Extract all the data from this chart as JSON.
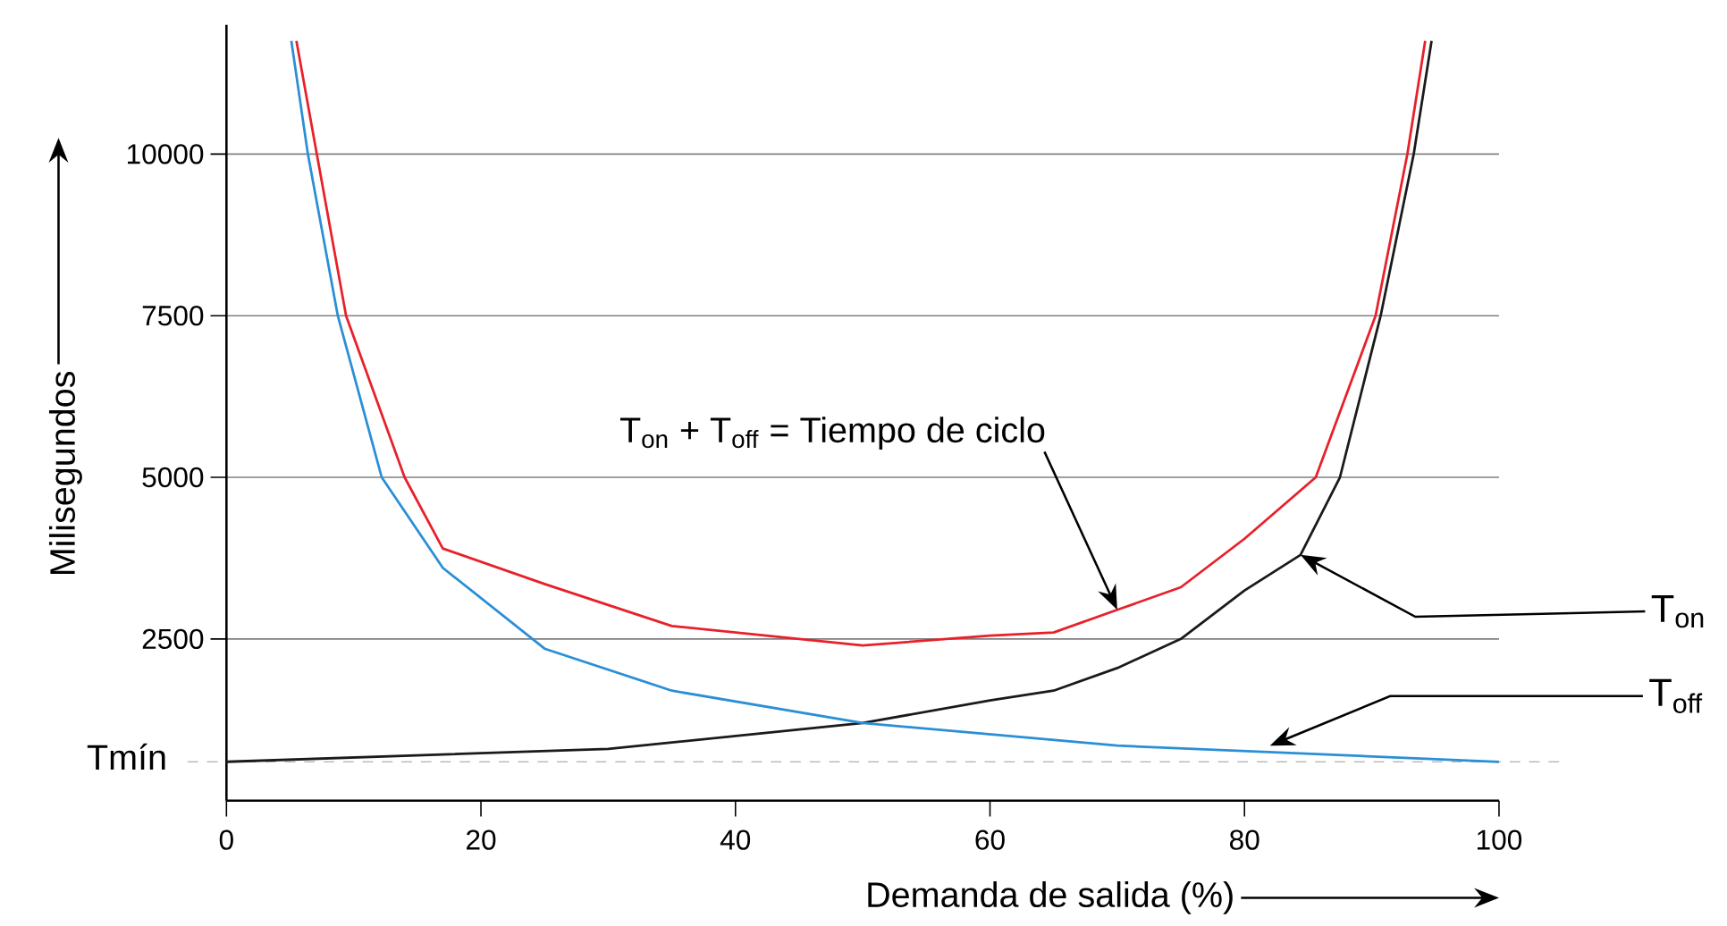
{
  "chart_data": {
    "type": "line",
    "xlabel": "Demanda de salida (%)",
    "ylabel": "Milisegundos",
    "xlim": [
      0,
      100
    ],
    "ylim": [
      0,
      12000
    ],
    "xticks": [
      0,
      20,
      40,
      60,
      80,
      100
    ],
    "yticks": [
      2500,
      5000,
      7500,
      10000
    ],
    "grid": "y",
    "line_style": "solid",
    "series": [
      {
        "color": "#1a1a1a",
        "x": [
          0,
          30,
          50,
          60,
          65,
          70,
          75,
          80,
          84.4,
          87.5,
          90.7,
          93.3,
          94.7
        ],
        "values": [
          600,
          800,
          1200,
          1550,
          1700,
          2050,
          2500,
          3250,
          3800,
          5000,
          7500,
          10000,
          11750
        ]
      },
      {
        "color": "#e8202a",
        "x": [
          5.5,
          7.1,
          9.4,
          14,
          17,
          25,
          35,
          50,
          60,
          65,
          70,
          75,
          80,
          85.6,
          90.3,
          92.8,
          94.2
        ],
        "values": [
          11750,
          10000,
          7500,
          5000,
          3900,
          3350,
          2700,
          2400,
          2550,
          2600,
          2950,
          3300,
          4050,
          5000,
          7500,
          10000,
          11750
        ]
      },
      {
        "color": "#2a8fd6",
        "x": [
          5.1,
          6.4,
          8.75,
          12.2,
          17,
          25,
          35,
          50,
          70,
          100
        ],
        "values": [
          11750,
          10000,
          7500,
          5000,
          3600,
          2350,
          1700,
          1200,
          850,
          600
        ]
      }
    ],
    "ref_lines": [
      {
        "axis": "y",
        "value": 600,
        "label": "Tmín",
        "color": "#9a9a9a",
        "line_style": "dashed"
      }
    ],
    "annotations": [
      {
        "text": "T$_{on}$ + T$_{off}$ = Tiempo de ciclo",
        "x": 70,
        "y": 2950
      },
      {
        "text": "T$_{on}$",
        "x": 84.4,
        "y": 3800
      },
      {
        "text": "T$_{off}$",
        "x": 82,
        "y": 850
      }
    ]
  }
}
